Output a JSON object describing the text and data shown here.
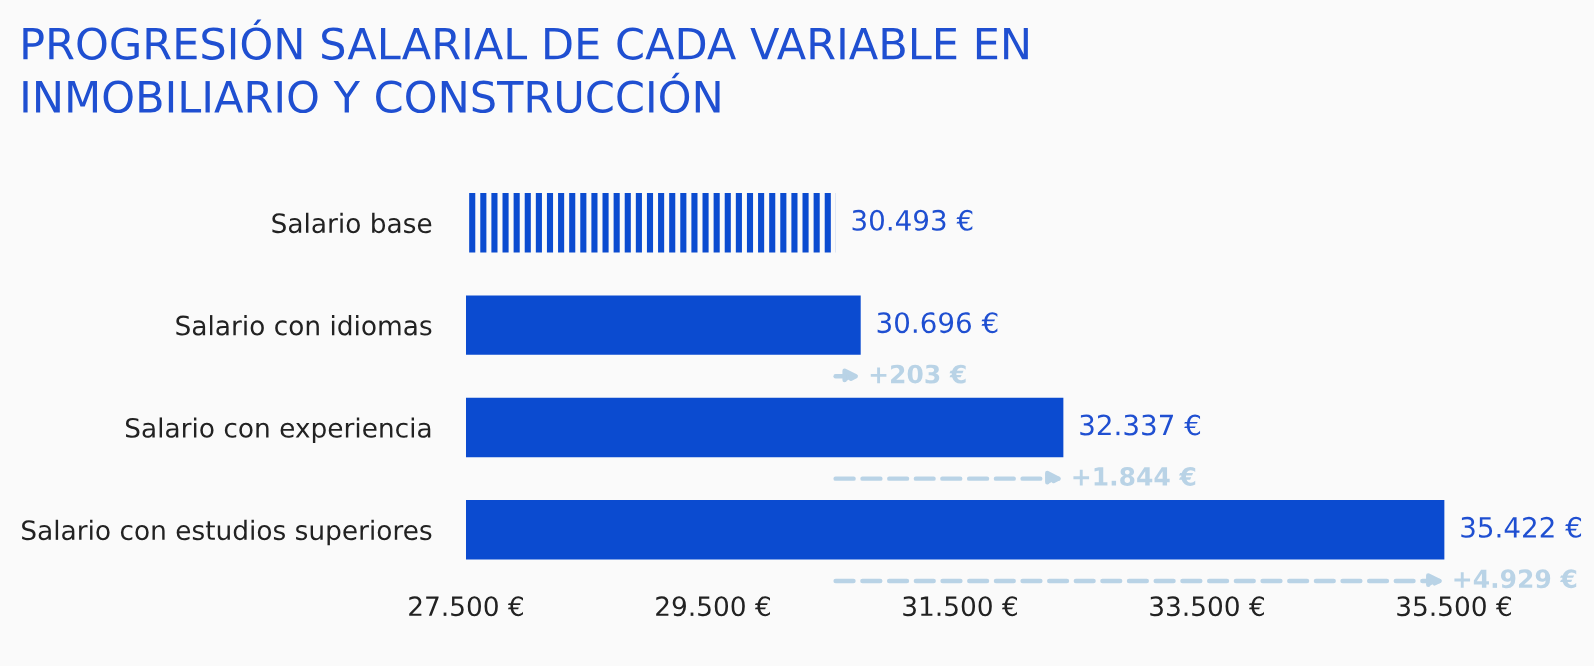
{
  "chart_data": {
    "type": "bar",
    "orientation": "horizontal",
    "title": "PROGRESIÓN SALARIAL DE CADA VARIABLE EN\nINMOBILIARIO Y CONSTRUCCIÓN",
    "categories": [
      "Salario base",
      "Salario con idiomas",
      "Salario con experiencia",
      "Salario con estudios superiores"
    ],
    "values": [
      30493,
      30696,
      32337,
      35422
    ],
    "value_labels": [
      "30.493 €",
      "30.696 €",
      "32.337 €",
      "35.422 €"
    ],
    "color": "#0b4bd0",
    "xlim": [
      27500,
      35500
    ],
    "xticks": [
      {
        "value": 27500,
        "label": "27.500 €"
      },
      {
        "value": 29500,
        "label": "29.500 €"
      },
      {
        "value": 31500,
        "label": "31.500 €"
      },
      {
        "value": 33500,
        "label": "33.500 €"
      },
      {
        "value": 35500,
        "label": "35.500 €"
      }
    ],
    "annotations": [
      {
        "text": "+203 €",
        "x": 30696,
        "y": "Salario con idiomas"
      },
      {
        "text": "+1.844 €",
        "x": 32337,
        "y": "Salario con experiencia"
      },
      {
        "text": "+4.929 €",
        "x": 35422,
        "y": "Salario con estudios superiores"
      }
    ],
    "grid": false,
    "legend": false
  }
}
